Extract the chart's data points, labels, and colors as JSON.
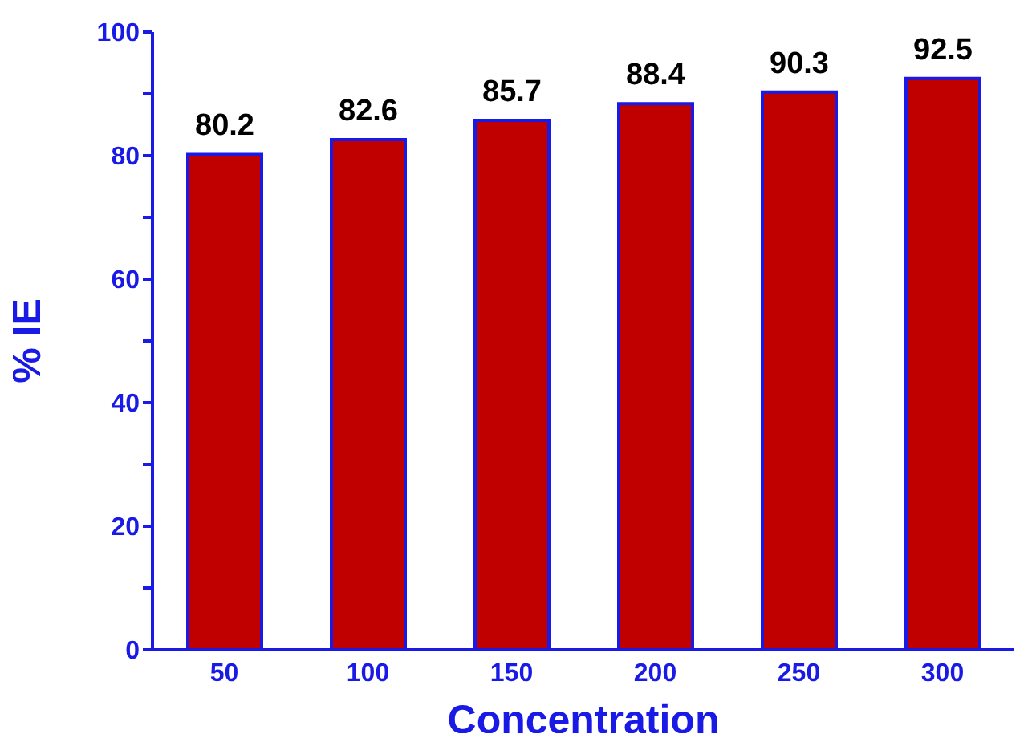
{
  "chart_data": {
    "type": "bar",
    "xlabel": "Concentration",
    "ylabel": "% IE",
    "categories": [
      "50",
      "100",
      "150",
      "200",
      "250",
      "300"
    ],
    "values": [
      80.2,
      82.6,
      85.7,
      88.4,
      90.3,
      92.5
    ],
    "color": "#c00000",
    "ylim": [
      0,
      100
    ],
    "yticks": [
      0,
      {
        "value": 10,
        "label": null
      },
      20,
      {
        "value": 30,
        "label": null
      },
      40,
      {
        "value": 50,
        "label": null
      },
      60,
      {
        "value": 70,
        "label": null
      },
      80,
      {
        "value": 90,
        "label": null
      },
      100
    ],
    "data_labels": true,
    "grid": false,
    "legend": false
  }
}
